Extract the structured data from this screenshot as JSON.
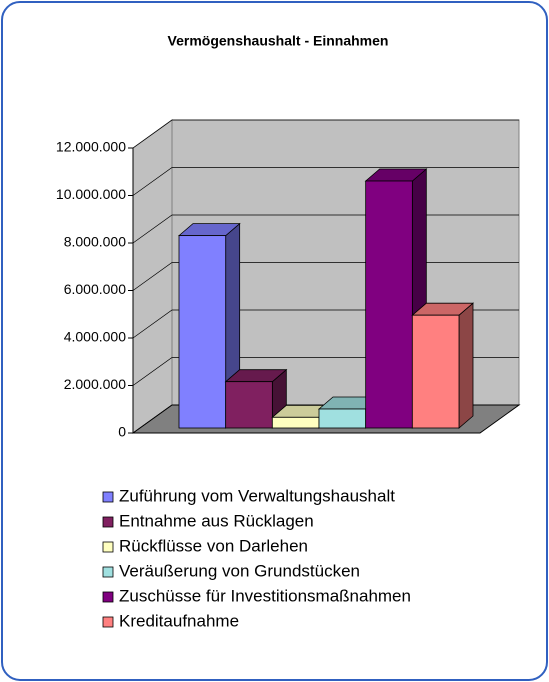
{
  "chart_data": {
    "type": "bar",
    "title": "Vermögenshaushalt - Einnahmen",
    "categories": [
      null
    ],
    "series": [
      {
        "name": "Zuführung vom Verwaltungshaushalt",
        "color": "#8080ff",
        "values": [
          8100000
        ]
      },
      {
        "name": "Entnahme aus Rücklagen",
        "color": "#802060",
        "values": [
          1950000
        ]
      },
      {
        "name": "Rückflüsse von Darlehen",
        "color": "#ffffc0",
        "values": [
          450000
        ]
      },
      {
        "name": "Veräußerung von Grundstücken",
        "color": "#a0e0e0",
        "values": [
          800000
        ]
      },
      {
        "name": "Zuschüsse für Investitionsmaßnahmen",
        "color": "#800080",
        "values": [
          10400000
        ]
      },
      {
        "name": "Kreditaufnahme",
        "color": "#ff8080",
        "values": [
          4750000
        ]
      }
    ],
    "ylim": [
      0,
      12000000
    ],
    "yticks": [
      0,
      {
        "value": 2000000,
        "label": "2.000.000"
      },
      {
        "value": 4000000,
        "label": "4.000.000"
      },
      {
        "value": 6000000,
        "label": "6.000.000"
      },
      {
        "value": 8000000,
        "label": "8.000.000"
      },
      {
        "value": 10000000,
        "label": "10.000.000"
      },
      {
        "value": 12000000,
        "label": "12.000.000"
      }
    ],
    "grid": true
  }
}
